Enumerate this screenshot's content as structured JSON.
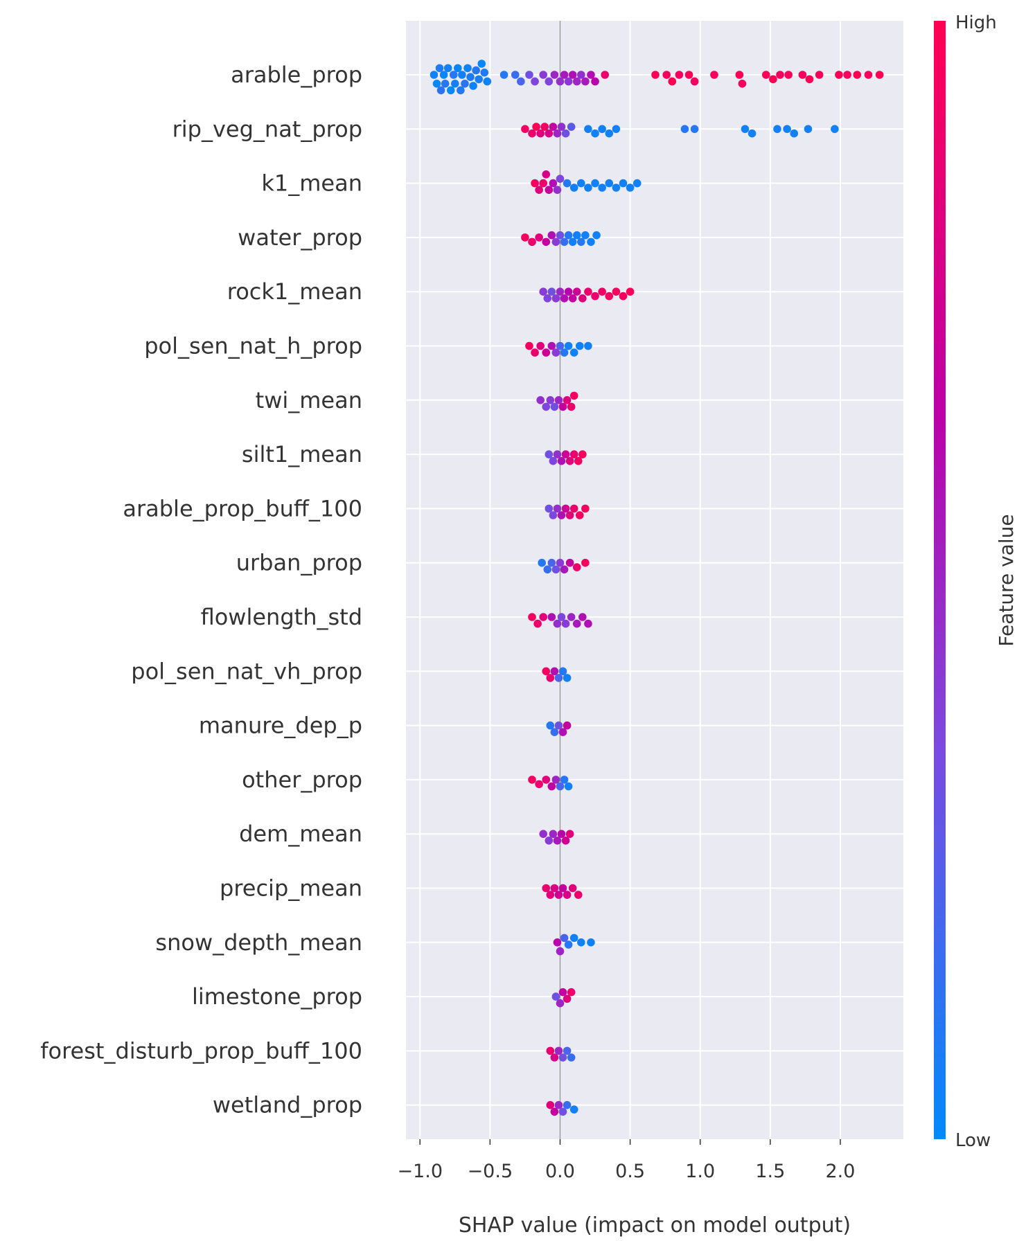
{
  "chart_data": {
    "type": "scatter",
    "subtype": "shap-beeswarm",
    "xlabel": "SHAP value (impact on model output)",
    "xlim": [
      -1.1,
      2.45
    ],
    "xticks": [
      -1.0,
      -0.5,
      0.0,
      0.5,
      1.0,
      1.5,
      2.0
    ],
    "xtick_labels": [
      "−1.0",
      "−0.5",
      "0.0",
      "0.5",
      "1.0",
      "1.5",
      "2.0"
    ],
    "grid": true,
    "background": "#eaeaf2",
    "colorbar": {
      "label": "Feature value",
      "high_label": "High",
      "low_label": "Low",
      "colors": [
        "#008afb",
        "#7b4ae0",
        "#bd00a8",
        "#ff0052"
      ]
    },
    "features": [
      {
        "name": "arable_prop",
        "points": [
          [
            -0.9,
            0.05
          ],
          [
            -0.88,
            0.02
          ],
          [
            -0.86,
            0.08
          ],
          [
            -0.85,
            0.12
          ],
          [
            -0.83,
            0.03
          ],
          [
            -0.82,
            0.1
          ],
          [
            -0.8,
            0.05
          ],
          [
            -0.78,
            0.0
          ],
          [
            -0.76,
            0.1
          ],
          [
            -0.75,
            0.06
          ],
          [
            -0.73,
            0.02
          ],
          [
            -0.71,
            0.09
          ],
          [
            -0.7,
            0.05
          ],
          [
            -0.68,
            0.12
          ],
          [
            -0.66,
            0.04
          ],
          [
            -0.64,
            0.08
          ],
          [
            -0.62,
            0.03
          ],
          [
            -0.6,
            0.1
          ],
          [
            -0.58,
            0.06
          ],
          [
            -0.56,
            0.02
          ],
          [
            -0.54,
            0.08
          ],
          [
            -0.52,
            0.05
          ],
          [
            -0.4,
            0.1
          ],
          [
            -0.32,
            0.15
          ],
          [
            -0.28,
            0.2
          ],
          [
            -0.22,
            0.3
          ],
          [
            -0.18,
            0.35
          ],
          [
            -0.12,
            0.4
          ],
          [
            -0.08,
            0.35
          ],
          [
            -0.04,
            0.5
          ],
          [
            0.0,
            0.45
          ],
          [
            0.03,
            0.55
          ],
          [
            0.06,
            0.42
          ],
          [
            0.09,
            0.6
          ],
          [
            0.12,
            0.5
          ],
          [
            0.15,
            0.45
          ],
          [
            0.18,
            0.55
          ],
          [
            0.22,
            0.6
          ],
          [
            0.25,
            0.65
          ],
          [
            0.32,
            0.9
          ],
          [
            0.68,
            0.98
          ],
          [
            0.76,
            0.95
          ],
          [
            0.8,
            1.0
          ],
          [
            0.85,
            0.95
          ],
          [
            0.92,
            0.98
          ],
          [
            0.96,
            0.95
          ],
          [
            1.1,
            0.97
          ],
          [
            1.28,
            1.0
          ],
          [
            1.3,
            0.95
          ],
          [
            1.47,
            0.98
          ],
          [
            1.52,
            1.0
          ],
          [
            1.57,
            0.95
          ],
          [
            1.63,
            0.97
          ],
          [
            1.73,
            0.95
          ],
          [
            1.78,
            1.0
          ],
          [
            1.85,
            0.96
          ],
          [
            1.99,
            0.98
          ],
          [
            2.05,
            0.95
          ],
          [
            2.12,
            1.0
          ],
          [
            2.2,
            0.97
          ],
          [
            2.28,
            0.99
          ]
        ]
      },
      {
        "name": "rip_veg_nat_prop",
        "points": [
          [
            -0.25,
            0.95
          ],
          [
            -0.2,
            0.9
          ],
          [
            -0.17,
            1.0
          ],
          [
            -0.14,
            0.85
          ],
          [
            -0.11,
            0.95
          ],
          [
            -0.08,
            0.8
          ],
          [
            -0.05,
            0.7
          ],
          [
            -0.02,
            0.5
          ],
          [
            0.01,
            0.45
          ],
          [
            0.04,
            0.3
          ],
          [
            0.08,
            0.25
          ],
          [
            0.2,
            0.05
          ],
          [
            0.25,
            0.05
          ],
          [
            0.3,
            0.05
          ],
          [
            0.35,
            0.05
          ],
          [
            0.4,
            0.05
          ],
          [
            0.89,
            0.1
          ],
          [
            0.96,
            0.1
          ],
          [
            1.32,
            0.05
          ],
          [
            1.37,
            0.05
          ],
          [
            1.55,
            0.05
          ],
          [
            1.62,
            0.05
          ],
          [
            1.67,
            0.05
          ],
          [
            1.77,
            0.05
          ],
          [
            1.96,
            0.05
          ]
        ]
      },
      {
        "name": "k1_mean",
        "points": [
          [
            -0.18,
            0.95
          ],
          [
            -0.15,
            0.85
          ],
          [
            -0.12,
            0.9
          ],
          [
            -0.1,
            0.8
          ],
          [
            -0.08,
            0.7
          ],
          [
            -0.05,
            0.6
          ],
          [
            -0.02,
            0.45
          ],
          [
            0.0,
            0.35
          ],
          [
            0.05,
            0.1
          ],
          [
            0.1,
            0.05
          ],
          [
            0.15,
            0.05
          ],
          [
            0.2,
            0.05
          ],
          [
            0.25,
            0.05
          ],
          [
            0.3,
            0.05
          ],
          [
            0.35,
            0.05
          ],
          [
            0.4,
            0.05
          ],
          [
            0.45,
            0.05
          ],
          [
            0.5,
            0.05
          ],
          [
            0.55,
            0.05
          ]
        ]
      },
      {
        "name": "water_prop",
        "points": [
          [
            -0.25,
            0.95
          ],
          [
            -0.2,
            0.9
          ],
          [
            -0.15,
            0.85
          ],
          [
            -0.1,
            0.7
          ],
          [
            -0.06,
            0.6
          ],
          [
            -0.03,
            0.4
          ],
          [
            0.0,
            0.3
          ],
          [
            0.03,
            0.15
          ],
          [
            0.06,
            0.1
          ],
          [
            0.09,
            0.05
          ],
          [
            0.12,
            0.05
          ],
          [
            0.15,
            0.1
          ],
          [
            0.18,
            0.05
          ],
          [
            0.22,
            0.05
          ],
          [
            0.26,
            0.05
          ]
        ]
      },
      {
        "name": "rock1_mean",
        "points": [
          [
            -0.12,
            0.4
          ],
          [
            -0.09,
            0.35
          ],
          [
            -0.06,
            0.3
          ],
          [
            -0.03,
            0.4
          ],
          [
            0.0,
            0.5
          ],
          [
            0.03,
            0.6
          ],
          [
            0.06,
            0.65
          ],
          [
            0.09,
            0.7
          ],
          [
            0.12,
            0.75
          ],
          [
            0.16,
            0.85
          ],
          [
            0.2,
            0.9
          ],
          [
            0.25,
            0.9
          ],
          [
            0.3,
            0.92
          ],
          [
            0.35,
            0.95
          ],
          [
            0.4,
            0.95
          ],
          [
            0.45,
            0.95
          ],
          [
            0.5,
            0.97
          ]
        ]
      },
      {
        "name": "pol_sen_nat_h_prop",
        "points": [
          [
            -0.22,
            0.95
          ],
          [
            -0.18,
            0.9
          ],
          [
            -0.14,
            0.85
          ],
          [
            -0.1,
            0.75
          ],
          [
            -0.06,
            0.6
          ],
          [
            -0.03,
            0.4
          ],
          [
            0.0,
            0.2
          ],
          [
            0.03,
            0.1
          ],
          [
            0.06,
            0.05
          ],
          [
            0.1,
            0.05
          ],
          [
            0.14,
            0.05
          ],
          [
            0.2,
            0.05
          ]
        ]
      },
      {
        "name": "twi_mean",
        "points": [
          [
            -0.14,
            0.45
          ],
          [
            -0.1,
            0.35
          ],
          [
            -0.07,
            0.4
          ],
          [
            -0.04,
            0.3
          ],
          [
            -0.01,
            0.5
          ],
          [
            0.02,
            0.7
          ],
          [
            0.05,
            0.85
          ],
          [
            0.08,
            0.9
          ],
          [
            0.1,
            0.95
          ]
        ]
      },
      {
        "name": "silt1_mean",
        "points": [
          [
            -0.08,
            0.3
          ],
          [
            -0.05,
            0.35
          ],
          [
            -0.02,
            0.45
          ],
          [
            0.01,
            0.6
          ],
          [
            0.04,
            0.75
          ],
          [
            0.07,
            0.85
          ],
          [
            0.1,
            0.9
          ],
          [
            0.13,
            0.95
          ],
          [
            0.16,
            0.95
          ]
        ]
      },
      {
        "name": "arable_prop_buff_100",
        "points": [
          [
            -0.08,
            0.3
          ],
          [
            -0.05,
            0.35
          ],
          [
            -0.02,
            0.45
          ],
          [
            0.01,
            0.6
          ],
          [
            0.04,
            0.75
          ],
          [
            0.07,
            0.85
          ],
          [
            0.1,
            0.9
          ],
          [
            0.14,
            0.95
          ],
          [
            0.18,
            0.95
          ]
        ]
      },
      {
        "name": "urban_prop",
        "points": [
          [
            -0.13,
            0.1
          ],
          [
            -0.09,
            0.15
          ],
          [
            -0.06,
            0.2
          ],
          [
            -0.03,
            0.3
          ],
          [
            0.0,
            0.4
          ],
          [
            0.03,
            0.55
          ],
          [
            0.07,
            0.7
          ],
          [
            0.12,
            0.9
          ],
          [
            0.18,
            0.95
          ]
        ]
      },
      {
        "name": "flowlength_std",
        "points": [
          [
            -0.2,
            0.95
          ],
          [
            -0.16,
            0.9
          ],
          [
            -0.12,
            0.85
          ],
          [
            -0.06,
            0.6
          ],
          [
            -0.02,
            0.45
          ],
          [
            0.01,
            0.35
          ],
          [
            0.04,
            0.4
          ],
          [
            0.08,
            0.5
          ],
          [
            0.12,
            0.55
          ],
          [
            0.16,
            0.6
          ],
          [
            0.2,
            0.6
          ]
        ]
      },
      {
        "name": "pol_sen_nat_vh_prop",
        "points": [
          [
            -0.1,
            0.95
          ],
          [
            -0.07,
            0.9
          ],
          [
            -0.04,
            0.6
          ],
          [
            -0.01,
            0.2
          ],
          [
            0.02,
            0.1
          ],
          [
            0.05,
            0.05
          ]
        ]
      },
      {
        "name": "manure_dep_p",
        "points": [
          [
            -0.07,
            0.1
          ],
          [
            -0.04,
            0.15
          ],
          [
            -0.01,
            0.3
          ],
          [
            0.02,
            0.6
          ],
          [
            0.05,
            0.7
          ]
        ]
      },
      {
        "name": "other_prop",
        "points": [
          [
            -0.2,
            0.95
          ],
          [
            -0.15,
            0.9
          ],
          [
            -0.1,
            0.85
          ],
          [
            -0.06,
            0.7
          ],
          [
            -0.03,
            0.5
          ],
          [
            0.0,
            0.2
          ],
          [
            0.03,
            0.1
          ],
          [
            0.06,
            0.05
          ]
        ]
      },
      {
        "name": "dem_mean",
        "points": [
          [
            -0.12,
            0.45
          ],
          [
            -0.08,
            0.4
          ],
          [
            -0.05,
            0.5
          ],
          [
            -0.02,
            0.55
          ],
          [
            0.01,
            0.65
          ],
          [
            0.04,
            0.75
          ],
          [
            0.07,
            0.85
          ]
        ]
      },
      {
        "name": "precip_mean",
        "points": [
          [
            -0.1,
            0.9
          ],
          [
            -0.07,
            0.85
          ],
          [
            -0.04,
            0.8
          ],
          [
            -0.01,
            0.75
          ],
          [
            0.02,
            0.7
          ],
          [
            0.05,
            0.8
          ],
          [
            0.09,
            0.85
          ],
          [
            0.13,
            0.9
          ]
        ]
      },
      {
        "name": "snow_depth_mean",
        "points": [
          [
            -0.02,
            0.65
          ],
          [
            0.0,
            0.5
          ],
          [
            0.03,
            0.2
          ],
          [
            0.06,
            0.1
          ],
          [
            0.1,
            0.05
          ],
          [
            0.15,
            0.05
          ],
          [
            0.22,
            0.05
          ]
        ]
      },
      {
        "name": "limestone_prop",
        "points": [
          [
            -0.03,
            0.3
          ],
          [
            0.0,
            0.5
          ],
          [
            0.02,
            0.7
          ],
          [
            0.05,
            0.85
          ],
          [
            0.08,
            0.9
          ]
        ]
      },
      {
        "name": "forest_disturb_prop_buff_100",
        "points": [
          [
            -0.07,
            0.9
          ],
          [
            -0.04,
            0.8
          ],
          [
            -0.01,
            0.5
          ],
          [
            0.02,
            0.3
          ],
          [
            0.05,
            0.2
          ],
          [
            0.08,
            0.15
          ]
        ]
      },
      {
        "name": "wetland_prop",
        "points": [
          [
            -0.07,
            0.85
          ],
          [
            -0.04,
            0.7
          ],
          [
            -0.01,
            0.5
          ],
          [
            0.02,
            0.3
          ],
          [
            0.05,
            0.15
          ],
          [
            0.1,
            0.05
          ]
        ]
      }
    ]
  }
}
